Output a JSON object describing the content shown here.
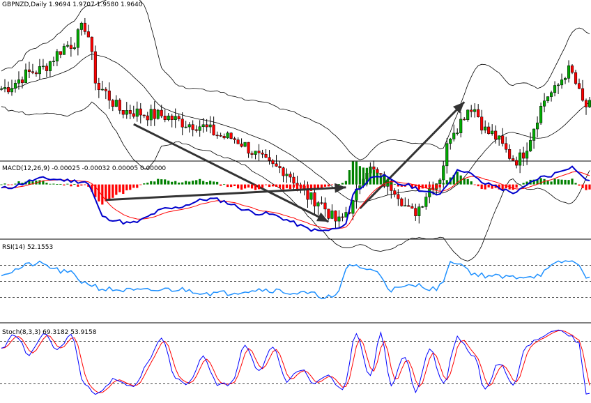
{
  "chart_data": [
    {
      "type": "candlestick",
      "name": "price",
      "label": "GBPNZD,Daily  1.9694 1.9707 1.9580 1.9640",
      "ohlc_readout": {
        "symbol": "GBPNZD",
        "timeframe": "Daily",
        "open": 1.9694,
        "high": 1.9707,
        "low": 1.958,
        "close": 1.964
      },
      "bar_count": 170,
      "ylim": [
        1.8,
        2.16
      ],
      "indicators": [
        "bollinger_bands"
      ],
      "series": [
        {
          "name": "close",
          "knots": [
            [
              0,
              1.96
            ],
            [
              10,
              2.0
            ],
            [
              20,
              2.06
            ],
            [
              24,
              2.1
            ],
            [
              28,
              1.96
            ],
            [
              35,
              1.91
            ],
            [
              45,
              1.9
            ],
            [
              55,
              1.88
            ],
            [
              65,
              1.85
            ],
            [
              80,
              1.78
            ],
            [
              90,
              1.71
            ],
            [
              97,
              1.66
            ],
            [
              100,
              1.69
            ],
            [
              105,
              1.78
            ],
            [
              112,
              1.74
            ],
            [
              118,
              1.68
            ],
            [
              125,
              1.75
            ],
            [
              130,
              1.87
            ],
            [
              135,
              1.92
            ],
            [
              140,
              1.86
            ],
            [
              148,
              1.8
            ],
            [
              158,
              1.95
            ],
            [
              163,
              2.0
            ],
            [
              168,
              1.92
            ]
          ]
        }
      ],
      "annotations": [
        {
          "type": "arrow",
          "from": [
            38,
            1.88
          ],
          "to": [
            94,
            1.66
          ]
        },
        {
          "type": "arrow",
          "from": [
            103,
            1.69
          ],
          "to": [
            133,
            1.93
          ]
        }
      ]
    },
    {
      "type": "line",
      "name": "macd",
      "label": "MACD(12,26,9) -0.00025 -0.00032 0.00005 0.00000",
      "zero_line": true,
      "series": [
        {
          "name": "macd_main",
          "color": "#0000cc",
          "style": "line",
          "knots": [
            [
              0,
              -0.0004
            ],
            [
              12,
              0.0006
            ],
            [
              24,
              0.0003
            ],
            [
              30,
              -0.0035
            ],
            [
              37,
              -0.004
            ],
            [
              48,
              -0.0025
            ],
            [
              60,
              -0.0015
            ],
            [
              75,
              -0.003
            ],
            [
              92,
              -0.0048
            ],
            [
              98,
              -0.0045
            ],
            [
              102,
              -0.0005
            ],
            [
              108,
              0.001
            ],
            [
              115,
              0.0
            ],
            [
              125,
              -0.001
            ],
            [
              132,
              0.0015
            ],
            [
              140,
              0.0
            ],
            [
              147,
              -0.0008
            ],
            [
              156,
              0.0008
            ],
            [
              164,
              0.0018
            ],
            [
              168,
              0.0005
            ]
          ]
        },
        {
          "name": "signal",
          "color": "#ff0000",
          "style": "line",
          "smoothing": 9
        },
        {
          "name": "histogram",
          "positive_color": "#008000",
          "negative_color": "#ff0000",
          "style": "bar"
        }
      ],
      "annotations": [
        {
          "type": "arrow",
          "from": [
            30,
            -0.0016
          ],
          "to": [
            99,
            -0.0003
          ]
        }
      ]
    },
    {
      "type": "line",
      "name": "rsi",
      "label": "RSI(14) 52.1553",
      "ylim": [
        0,
        100
      ],
      "levels": [
        70,
        50,
        30
      ],
      "series": [
        {
          "name": "RSI(14)",
          "color": "#1e90ff",
          "knots": [
            [
              0,
              60
            ],
            [
              10,
              72
            ],
            [
              20,
              60
            ],
            [
              24,
              48
            ],
            [
              30,
              40
            ],
            [
              40,
              38
            ],
            [
              50,
              40
            ],
            [
              62,
              35
            ],
            [
              75,
              40
            ],
            [
              86,
              35
            ],
            [
              96,
              30
            ],
            [
              100,
              71
            ],
            [
              108,
              62
            ],
            [
              112,
              40
            ],
            [
              120,
              45
            ],
            [
              125,
              40
            ],
            [
              130,
              75
            ],
            [
              137,
              58
            ],
            [
              145,
              55
            ],
            [
              153,
              57
            ],
            [
              162,
              75
            ],
            [
              166,
              73
            ],
            [
              168,
              52
            ]
          ]
        }
      ]
    },
    {
      "type": "line",
      "name": "stochastic",
      "label": "Stoch(8,3,3) 69.3182 53.9158",
      "ylim": [
        0,
        100
      ],
      "levels": [
        80,
        20
      ],
      "series": [
        {
          "name": "%K",
          "color": "#0000ff",
          "knots": [
            [
              0,
              70
            ],
            [
              4,
              90
            ],
            [
              8,
              60
            ],
            [
              12,
              90
            ],
            [
              16,
              70
            ],
            [
              20,
              88
            ],
            [
              24,
              18
            ],
            [
              28,
              5
            ],
            [
              32,
              25
            ],
            [
              38,
              15
            ],
            [
              42,
              50
            ],
            [
              46,
              85
            ],
            [
              50,
              30
            ],
            [
              54,
              20
            ],
            [
              58,
              60
            ],
            [
              62,
              20
            ],
            [
              66,
              20
            ],
            [
              70,
              75
            ],
            [
              74,
              40
            ],
            [
              78,
              70
            ],
            [
              82,
              25
            ],
            [
              86,
              40
            ],
            [
              90,
              20
            ],
            [
              94,
              30
            ],
            [
              98,
              10
            ],
            [
              102,
              90
            ],
            [
              106,
              30
            ],
            [
              109,
              90
            ],
            [
              112,
              20
            ],
            [
              116,
              60
            ],
            [
              119,
              10
            ],
            [
              123,
              70
            ],
            [
              127,
              20
            ],
            [
              131,
              85
            ],
            [
              136,
              60
            ],
            [
              139,
              10
            ],
            [
              143,
              50
            ],
            [
              147,
              20
            ],
            [
              151,
              75
            ],
            [
              155,
              85
            ],
            [
              159,
              95
            ],
            [
              163,
              90
            ],
            [
              166,
              75
            ],
            [
              168,
              5
            ]
          ]
        },
        {
          "name": "%D",
          "color": "#ff0000",
          "smoothing": 3
        }
      ]
    }
  ]
}
